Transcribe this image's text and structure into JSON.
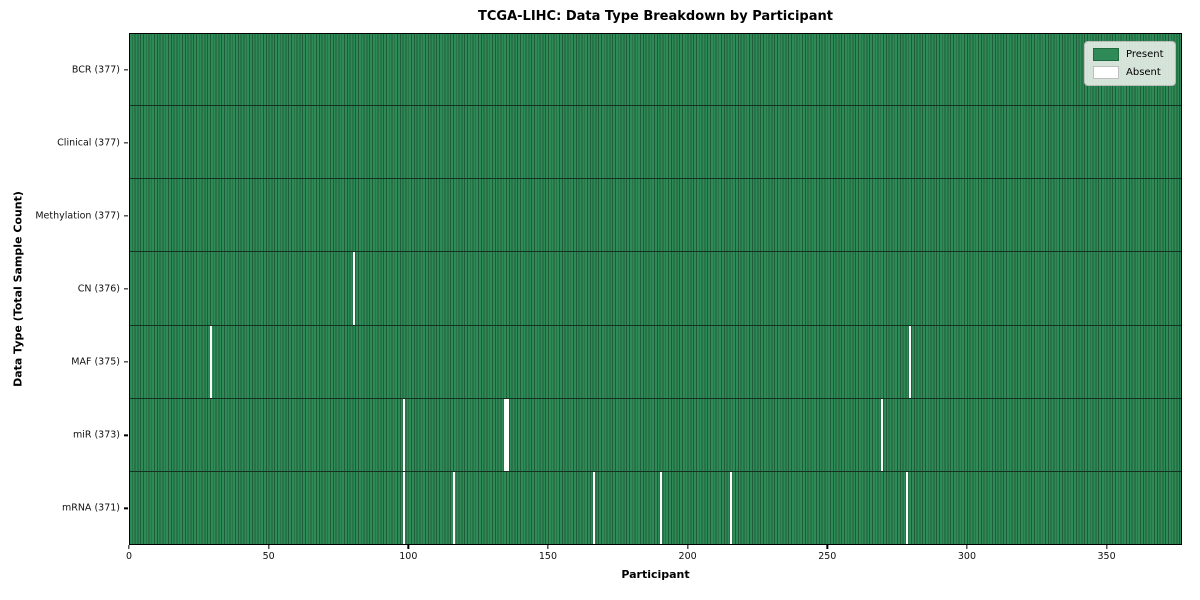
{
  "chart_data": {
    "type": "heatmap",
    "title": "TCGA-LIHC: Data Type Breakdown by Participant",
    "xlabel": "Participant",
    "ylabel": "Data Type (Total Sample Count)",
    "x_ticks": [
      0,
      50,
      100,
      150,
      200,
      250,
      300,
      350
    ],
    "x_range": [
      0,
      377
    ],
    "n_participants": 377,
    "grid": false,
    "legend_position": "upper right",
    "legend": [
      {
        "label": "Present",
        "color": "#2e8b57"
      },
      {
        "label": "Absent",
        "color": "#ffffff"
      }
    ],
    "rows": [
      {
        "label": "BCR (377)",
        "name": "BCR",
        "total": 377,
        "absent": []
      },
      {
        "label": "Clinical (377)",
        "name": "Clinical",
        "total": 377,
        "absent": []
      },
      {
        "label": "Methylation (377)",
        "name": "Methylation",
        "total": 377,
        "absent": []
      },
      {
        "label": "CN (376)",
        "name": "CN",
        "total": 376,
        "absent": [
          80
        ]
      },
      {
        "label": "MAF (375)",
        "name": "MAF",
        "total": 375,
        "absent": [
          29,
          279
        ]
      },
      {
        "label": "miR (373)",
        "name": "miR",
        "total": 373,
        "absent": [
          98,
          134,
          135,
          269
        ]
      },
      {
        "label": "mRNA (371)",
        "name": "mRNA",
        "total": 371,
        "absent": [
          98,
          116,
          166,
          190,
          215,
          278
        ]
      }
    ],
    "colors": {
      "present": "#2e8b57",
      "absent": "#ffffff",
      "cell_edge": "#1e5c3a",
      "row_divider": "#13321f",
      "axis": "#000000",
      "background": "#ffffff"
    }
  }
}
